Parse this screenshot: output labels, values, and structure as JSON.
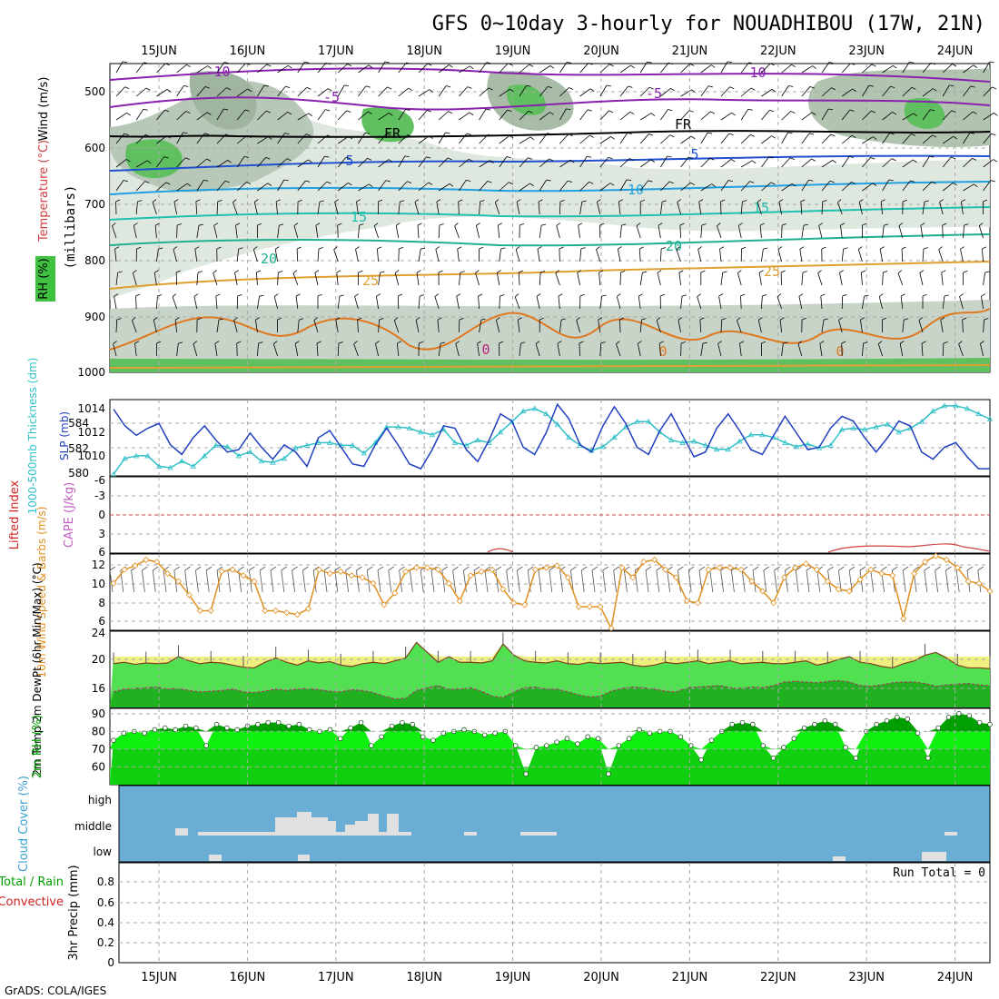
{
  "title": "GFS 0~10day 3-hourly for NOUADHIBOU (17W, 21N)",
  "footer": "GrADS: COLA/IGES",
  "dates": [
    "15JUN",
    "16JUN",
    "17JUN",
    "18JUN",
    "19JUN",
    "20JUN",
    "21JUN",
    "22JUN",
    "23JUN",
    "24JUN"
  ],
  "colors": {
    "frame": "#000000",
    "grid": "#a8a8a8",
    "slp": "#2040c0",
    "thick": "#30c0c8",
    "wind_speed": "#e09020",
    "temp": "#40e040",
    "rh": "#00a000",
    "cloud": "#6aaed6",
    "cloud_block": "#e0e0e0",
    "lifted": "#d02020",
    "cape": "#c060c0"
  },
  "chart_data": [
    {
      "type": "heatmap",
      "panel": "upper-air",
      "ylabel": "(millibars)",
      "side_labels": [
        "Wind (m/s)",
        "Temperature (°C)",
        "RH (%)"
      ],
      "yticks": [
        "500",
        "600",
        "700",
        "800",
        "900",
        "1000"
      ],
      "contour_labels": [
        "-10",
        "-5",
        "FR",
        "5",
        "10",
        "15",
        "20",
        "25",
        "0"
      ]
    },
    {
      "type": "line",
      "panel": "slp-thickness",
      "ylabel_left": "1000-500mb Thickness (dm)",
      "ylabel_right": "SLP (mb)",
      "yticks_left": [
        "580",
        "582",
        "584"
      ],
      "yticks_right": [
        "1010",
        "1012",
        "1014"
      ],
      "series": [
        {
          "name": "SLP (mb)",
          "values": [
            1014.2,
            1012.8,
            1012.0,
            1012.6,
            1013.0,
            1011.2,
            1010.4,
            1011.8,
            1012.8,
            1011.6,
            1010.6,
            1010.8,
            1012.2,
            1011.0,
            1010.0,
            1011.2,
            1010.6,
            1009.4,
            1011.8,
            1012.4,
            1011.0,
            1009.6,
            1009.4,
            1011.2,
            1012.6,
            1011.2,
            1009.6,
            1009.2,
            1010.8,
            1012.8,
            1012.6,
            1010.8,
            1009.8,
            1011.6,
            1013.8,
            1013.2,
            1011.0,
            1010.4,
            1012.2,
            1014.6,
            1013.4,
            1011.2,
            1010.6,
            1012.8,
            1014.4,
            1013.0,
            1011.0,
            1010.4,
            1012.4,
            1013.8,
            1012.0,
            1010.2,
            1010.6,
            1012.6,
            1013.8,
            1012.4,
            1010.8,
            1010.4,
            1012.0,
            1013.6,
            1012.2,
            1010.8,
            1011.0,
            1012.6,
            1013.6,
            1013.2,
            1011.8,
            1010.6,
            1011.8,
            1013.2,
            1012.8,
            1010.6,
            1010.0,
            1011.0,
            1011.4,
            1010.2,
            1009.2,
            1009.2
          ]
        },
        {
          "name": "1000-500mb Thickness (dm)",
          "values": [
            580.4,
            581.6,
            581.8,
            581.8,
            581.0,
            580.9,
            581.4,
            581.0,
            581.8,
            582.6,
            582.5,
            581.8,
            582.1,
            581.4,
            581.3,
            581.6,
            582.4,
            582.6,
            582.8,
            582.8,
            582.6,
            582.6,
            582.0,
            582.8,
            584.0,
            584.0,
            583.9,
            583.6,
            583.4,
            583.8,
            582.8,
            582.6,
            583.0,
            582.8,
            583.6,
            584.4,
            585.2,
            585.4,
            585.0,
            584.2,
            583.2,
            582.6,
            582.2,
            582.5,
            583.2,
            584.0,
            584.4,
            584.4,
            583.6,
            583.0,
            582.8,
            582.9,
            582.6,
            582.3,
            582.3,
            582.9,
            583.4,
            583.4,
            583.2,
            582.8,
            582.5,
            582.7,
            582.4,
            582.6,
            583.8,
            583.9,
            583.8,
            584.0,
            584.2,
            583.6,
            583.9,
            584.4,
            585.2,
            585.6,
            585.6,
            585.4,
            585.0,
            584.6
          ]
        }
      ]
    },
    {
      "type": "line",
      "panel": "stability",
      "ylabel": "Lifted Index",
      "ylabel2": "CAPE (J/kg)",
      "yticks": [
        "-6",
        "-3",
        "0",
        "3",
        "6"
      ]
    },
    {
      "type": "line",
      "panel": "wind-10m",
      "ylabel": "10m Wind Speed & Barbs (m/s)",
      "yticks": [
        "6",
        "8",
        "10",
        "12"
      ],
      "series": [
        {
          "name": "10m Wind Speed",
          "values": [
            10.0,
            11.4,
            11.8,
            12.4,
            12.2,
            11.0,
            10.2,
            8.8,
            7.2,
            7.2,
            11.2,
            11.4,
            10.8,
            10.2,
            7.2,
            7.2,
            7.0,
            6.8,
            7.4,
            11.4,
            11.0,
            11.2,
            10.8,
            10.6,
            10.0,
            7.8,
            9.0,
            11.2,
            11.6,
            11.6,
            11.4,
            10.0,
            8.2,
            10.8,
            11.2,
            11.4,
            9.4,
            8.0,
            7.8,
            11.4,
            11.6,
            11.8,
            10.6,
            7.6,
            7.6,
            7.6,
            5.4,
            11.6,
            10.6,
            12.2,
            12.4,
            11.4,
            10.6,
            8.2,
            8.0,
            11.4,
            11.6,
            11.6,
            11.4,
            10.2,
            9.2,
            8.0,
            10.6,
            11.6,
            12.0,
            11.4,
            10.2,
            9.4,
            9.2,
            10.4,
            11.4,
            11.0,
            10.8,
            6.4,
            11.0,
            12.2,
            12.8,
            12.4,
            11.6,
            10.2,
            10.0,
            9.2
          ]
        }
      ]
    },
    {
      "type": "area",
      "panel": "temp-dewpt",
      "ylabel": "2m Temp 2m DewPt (6hr Min/Max) (°C)",
      "yticks": [
        "16",
        "20",
        "24"
      ],
      "series": [
        {
          "name": "2m Temp",
          "values": [
            19.4,
            19.6,
            19.3,
            19.5,
            19.4,
            19.5,
            20.4,
            19.8,
            19.4,
            19.6,
            19.5,
            19.2,
            18.9,
            18.8,
            19.6,
            20.2,
            19.6,
            19.2,
            19.8,
            19.5,
            19.7,
            19.2,
            19.0,
            19.4,
            19.6,
            19.4,
            19.8,
            20.2,
            22.4,
            21.0,
            19.6,
            20.4,
            19.6,
            19.6,
            19.5,
            19.8,
            22.2,
            20.6,
            19.8,
            19.6,
            19.5,
            19.8,
            19.4,
            19.3,
            19.6,
            19.4,
            19.5,
            19.6,
            19.2,
            19.0,
            19.2,
            19.6,
            19.4,
            19.6,
            19.8,
            19.4,
            19.6,
            19.8,
            19.4,
            19.5,
            19.6,
            19.4,
            19.4,
            19.6,
            19.8,
            19.2,
            19.5,
            20.0,
            20.4,
            19.6,
            19.4,
            19.0,
            18.8,
            19.4,
            19.8,
            20.6,
            21.0,
            20.2,
            19.2,
            18.8,
            18.8,
            18.7
          ]
        },
        {
          "name": "2m DewPt",
          "values": [
            15.4,
            15.8,
            15.9,
            16.0,
            16.1,
            15.8,
            15.9,
            15.6,
            15.4,
            15.5,
            15.6,
            15.8,
            15.4,
            15.3,
            15.5,
            15.8,
            15.6,
            15.8,
            15.9,
            15.7,
            15.5,
            15.4,
            15.7,
            15.6,
            15.3,
            14.8,
            14.4,
            14.5,
            15.6,
            16.0,
            16.3,
            15.8,
            15.8,
            16.0,
            15.5,
            14.8,
            14.6,
            15.4,
            16.0,
            16.1,
            15.8,
            15.8,
            15.4,
            15.0,
            14.7,
            14.8,
            15.5,
            15.9,
            16.1,
            16.0,
            15.8,
            15.5,
            15.4,
            16.0,
            16.1,
            16.2,
            16.3,
            16.0,
            15.9,
            16.1,
            16.0,
            16.3,
            16.8,
            16.9,
            16.8,
            16.7,
            16.9,
            17.0,
            16.8,
            16.3,
            16.2,
            16.4,
            16.7,
            16.8,
            16.8,
            16.6,
            16.2,
            16.4,
            16.5,
            16.6,
            16.4,
            16.3
          ]
        }
      ]
    },
    {
      "type": "area",
      "panel": "rh-2m",
      "ylabel": "2m RH (%)",
      "yticks": [
        "60",
        "70",
        "80",
        "90"
      ],
      "series": [
        {
          "name": "2m RH",
          "values": [
            75,
            79,
            80,
            79,
            81,
            82,
            81,
            83,
            82,
            72,
            84,
            82,
            81,
            83,
            84,
            85,
            85,
            83,
            84,
            81,
            80,
            81,
            76,
            82,
            85,
            72,
            77,
            83,
            85,
            84,
            77,
            75,
            79,
            80,
            81,
            80,
            78,
            79,
            80,
            72,
            56,
            71,
            72,
            74,
            76,
            73,
            77,
            76,
            56,
            72,
            76,
            81,
            79,
            80,
            80,
            77,
            72,
            64,
            75,
            80,
            84,
            85,
            84,
            72,
            65,
            71,
            76,
            82,
            84,
            86,
            84,
            71,
            65,
            80,
            84,
            86,
            88,
            87,
            79,
            65,
            82,
            88,
            90,
            89,
            85,
            84
          ]
        }
      ]
    },
    {
      "type": "bar",
      "panel": "cloud-cover",
      "ylabel": "Cloud Cover (%)",
      "yticks": [
        "high",
        "middle",
        "low"
      ]
    },
    {
      "type": "line",
      "panel": "precip",
      "ylabel": "3hr Precip (mm)",
      "side_labels": [
        "Total / Rain",
        "Convective"
      ],
      "yticks": [
        "0",
        "0.2",
        "0.4",
        "0.6",
        "0.8"
      ],
      "annotation": "Run Total = 0"
    }
  ]
}
